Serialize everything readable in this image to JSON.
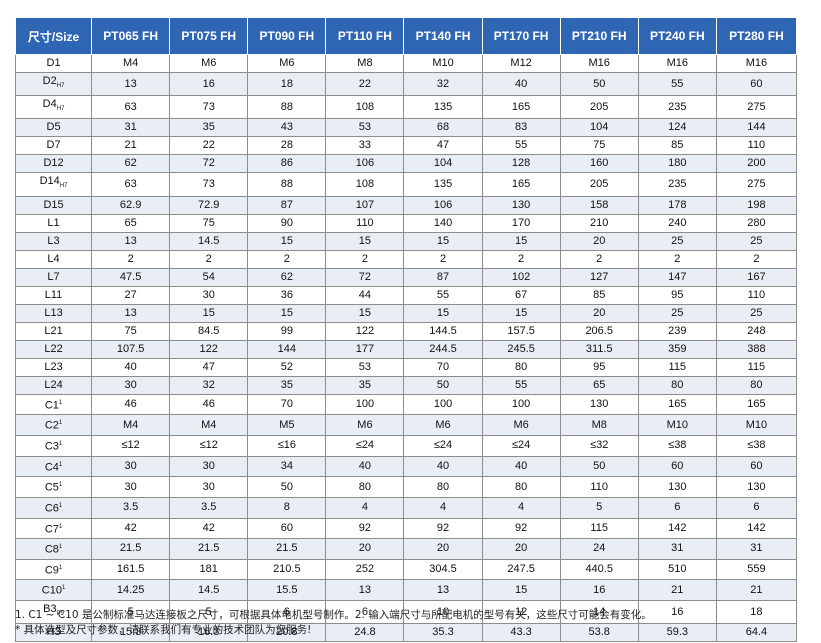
{
  "table": {
    "header": [
      "尺寸/Size",
      "PT065 FH",
      "PT075 FH",
      "PT090 FH",
      "PT110 FH",
      "PT140 FH",
      "PT170 FH",
      "PT210 FH",
      "PT240 FH",
      "PT280 FH"
    ],
    "rows": [
      {
        "label": "D1",
        "sub": "",
        "sup": "",
        "values": [
          "M4",
          "M6",
          "M6",
          "M8",
          "M10",
          "M12",
          "M16",
          "M16",
          "M16"
        ]
      },
      {
        "label": "D2",
        "sub": "H7",
        "sup": "",
        "values": [
          "13",
          "16",
          "18",
          "22",
          "32",
          "40",
          "50",
          "55",
          "60"
        ]
      },
      {
        "label": "D4",
        "sub": "H7",
        "sup": "",
        "values": [
          "63",
          "73",
          "88",
          "108",
          "135",
          "165",
          "205",
          "235",
          "275"
        ]
      },
      {
        "label": "D5",
        "sub": "",
        "sup": "",
        "values": [
          "31",
          "35",
          "43",
          "53",
          "68",
          "83",
          "104",
          "124",
          "144"
        ]
      },
      {
        "label": "D7",
        "sub": "",
        "sup": "",
        "values": [
          "21",
          "22",
          "28",
          "33",
          "47",
          "55",
          "75",
          "85",
          "110"
        ]
      },
      {
        "label": "D12",
        "sub": "",
        "sup": "",
        "values": [
          "62",
          "72",
          "86",
          "106",
          "104",
          "128",
          "160",
          "180",
          "200"
        ]
      },
      {
        "label": "D14",
        "sub": "H7",
        "sup": "",
        "values": [
          "63",
          "73",
          "88",
          "108",
          "135",
          "165",
          "205",
          "235",
          "275"
        ]
      },
      {
        "label": "D15",
        "sub": "",
        "sup": "",
        "values": [
          "62.9",
          "72.9",
          "87",
          "107",
          "106",
          "130",
          "158",
          "178",
          "198"
        ]
      },
      {
        "label": "L1",
        "sub": "",
        "sup": "",
        "values": [
          "65",
          "75",
          "90",
          "110",
          "140",
          "170",
          "210",
          "240",
          "280"
        ]
      },
      {
        "label": "L3",
        "sub": "",
        "sup": "",
        "values": [
          "13",
          "14.5",
          "15",
          "15",
          "15",
          "15",
          "20",
          "25",
          "25"
        ]
      },
      {
        "label": "L4",
        "sub": "",
        "sup": "",
        "values": [
          "2",
          "2",
          "2",
          "2",
          "2",
          "2",
          "2",
          "2",
          "2"
        ]
      },
      {
        "label": "L7",
        "sub": "",
        "sup": "",
        "values": [
          "47.5",
          "54",
          "62",
          "72",
          "87",
          "102",
          "127",
          "147",
          "167"
        ]
      },
      {
        "label": "L11",
        "sub": "",
        "sup": "",
        "values": [
          "27",
          "30",
          "36",
          "44",
          "55",
          "67",
          "85",
          "95",
          "110"
        ]
      },
      {
        "label": "L13",
        "sub": "",
        "sup": "",
        "values": [
          "13",
          "15",
          "15",
          "15",
          "15",
          "15",
          "20",
          "25",
          "25"
        ]
      },
      {
        "label": "L21",
        "sub": "",
        "sup": "",
        "values": [
          "75",
          "84.5",
          "99",
          "122",
          "144.5",
          "157.5",
          "206.5",
          "239",
          "248"
        ]
      },
      {
        "label": "L22",
        "sub": "",
        "sup": "",
        "values": [
          "107.5",
          "122",
          "144",
          "177",
          "244.5",
          "245.5",
          "311.5",
          "359",
          "388"
        ]
      },
      {
        "label": "L23",
        "sub": "",
        "sup": "",
        "values": [
          "40",
          "47",
          "52",
          "53",
          "70",
          "80",
          "95",
          "115",
          "115"
        ]
      },
      {
        "label": "L24",
        "sub": "",
        "sup": "",
        "values": [
          "30",
          "32",
          "35",
          "35",
          "50",
          "55",
          "65",
          "80",
          "80"
        ]
      },
      {
        "label": "C1",
        "sub": "",
        "sup": "1",
        "values": [
          "46",
          "46",
          "70",
          "100",
          "100",
          "100",
          "130",
          "165",
          "165"
        ]
      },
      {
        "label": "C2",
        "sub": "",
        "sup": "1",
        "values": [
          "M4",
          "M4",
          "M5",
          "M6",
          "M6",
          "M6",
          "M8",
          "M10",
          "M10"
        ]
      },
      {
        "label": "C3",
        "sub": "",
        "sup": "1",
        "values": [
          "≤12",
          "≤12",
          "≤16",
          "≤24",
          "≤24",
          "≤24",
          "≤32",
          "≤38",
          "≤38"
        ]
      },
      {
        "label": "C4",
        "sub": "",
        "sup": "1",
        "values": [
          "30",
          "30",
          "34",
          "40",
          "40",
          "40",
          "50",
          "60",
          "60"
        ]
      },
      {
        "label": "C5",
        "sub": "",
        "sup": "1",
        "values": [
          "30",
          "30",
          "50",
          "80",
          "80",
          "80",
          "110",
          "130",
          "130"
        ]
      },
      {
        "label": "C6",
        "sub": "",
        "sup": "1",
        "values": [
          "3.5",
          "3.5",
          "8",
          "4",
          "4",
          "4",
          "5",
          "6",
          "6"
        ]
      },
      {
        "label": "C7",
        "sub": "",
        "sup": "1",
        "values": [
          "42",
          "42",
          "60",
          "92",
          "92",
          "92",
          "115",
          "142",
          "142"
        ]
      },
      {
        "label": "C8",
        "sub": "",
        "sup": "1",
        "values": [
          "21.5",
          "21.5",
          "21.5",
          "20",
          "20",
          "20",
          "24",
          "31",
          "31"
        ]
      },
      {
        "label": "C9",
        "sub": "",
        "sup": "1",
        "values": [
          "161.5",
          "181",
          "210.5",
          "252",
          "304.5",
          "247.5",
          "440.5",
          "510",
          "559"
        ]
      },
      {
        "label": "C10",
        "sub": "",
        "sup": "1",
        "values": [
          "14.25",
          "14.5",
          "15.5",
          "13",
          "13",
          "15",
          "16",
          "21",
          "21"
        ]
      },
      {
        "label": "B3",
        "sub": "P9",
        "sup": "",
        "values": [
          "5",
          "5",
          "6",
          "6",
          "10",
          "12",
          "14",
          "16",
          "18"
        ]
      },
      {
        "label": "H3",
        "sub": "",
        "sup": "",
        "values": [
          "15.3",
          "16.3",
          "20.8",
          "24.8",
          "35.3",
          "43.3",
          "53.8",
          "59.3",
          "64.4"
        ]
      }
    ]
  },
  "notes": {
    "line1": "1. C1 ~ C10 是公制标准马达连接板之尺寸，可根据具体电机型号制作。2. 输入端尺寸与所配电机的型号有关，这些尺寸可能会有变化。",
    "line2": "* 具体选型及尺寸参数，请联系我们有专业的技术团队为您服务!"
  },
  "colors": {
    "header_bg": "#2f66b3",
    "header_text": "#ffffff",
    "row_alt": "#e9eef5"
  }
}
